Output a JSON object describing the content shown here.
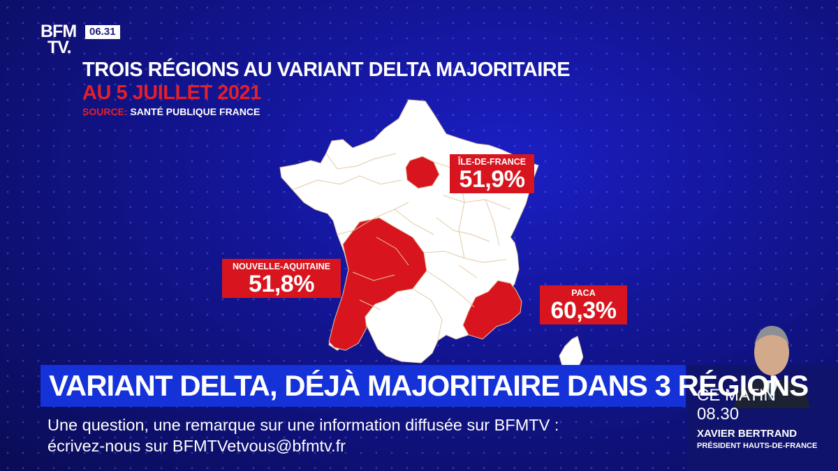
{
  "channel": {
    "logo_line1": "BFM",
    "logo_line2": "TV.",
    "clock": "06.31"
  },
  "infographic": {
    "title": "TROIS RÉGIONS AU VARIANT DELTA MAJORITAIRE",
    "subtitle": "AU 5 JUILLET 2021",
    "source_label": "SOURCE:",
    "source_value": "SANTÉ PUBLIQUE FRANCE",
    "regions": [
      {
        "name": "ÎLE-DE-FRANCE",
        "value": "51,9%",
        "share": 51.9,
        "color": "#d8151f"
      },
      {
        "name": "NOUVELLE-AQUITAINE",
        "value": "51,8%",
        "share": 51.8,
        "color": "#d8151f"
      },
      {
        "name": "PACA",
        "value": "60,3%",
        "share": 60.3,
        "color": "#d8151f"
      }
    ],
    "base_color": "#ffffff",
    "highlight_color": "#e3202a"
  },
  "headline": "VARIANT DELTA, DÉJÀ MAJORITAIRE DANS 3 RÉGIONS",
  "ticker": {
    "line1": "Une question, une remarque sur une information diffusée sur BFMTV :",
    "line2": "écrivez-nous sur BFMTVetvous@bfmtv.fr"
  },
  "program": {
    "label": "CE MATIN",
    "time": "08.30",
    "guest_name": "XAVIER BERTRAND",
    "guest_role": "PRÉSIDENT HAUTS-DE-FRANCE"
  }
}
